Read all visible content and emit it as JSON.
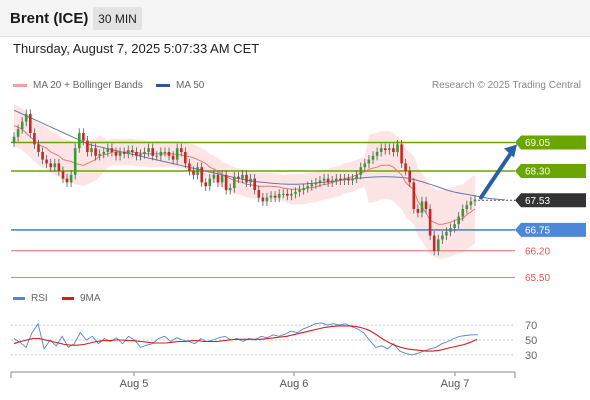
{
  "header": {
    "title": "Brent (ICE)",
    "timeframe": "30 MIN"
  },
  "datetime": "Thursday, August 7, 2025 5:07:33 AM CET",
  "legend": {
    "ma20": "MA 20 + Bollinger Bands",
    "ma50": "MA 50"
  },
  "credit": "Research © 2025 Trading Central",
  "rsi_legend": {
    "rsi": "RSI",
    "ma": "9MA"
  },
  "colors": {
    "green": "#6aa500",
    "blue": "#4d88d8",
    "red": "#e05555",
    "dark": "#333333",
    "arrow": "#2a5ea6",
    "bollinger": "#fde0e0",
    "ma20": "#e8787a",
    "ma50": "#6878a8"
  },
  "chart_data": [
    {
      "type": "candlestick",
      "x_ticks": [
        "Aug 5",
        "Aug 6",
        "Aug 7"
      ],
      "price_levels": [
        {
          "value": 69.05,
          "label": "69.05",
          "kind": "resistance",
          "color": "#6aa500"
        },
        {
          "value": 68.3,
          "label": "68.30",
          "kind": "resistance",
          "color": "#6aa500"
        },
        {
          "value": 67.53,
          "label": "67.53",
          "kind": "last",
          "color": "#333333"
        },
        {
          "value": 66.75,
          "label": "66.75",
          "kind": "pivot",
          "color": "#4d88d8"
        },
        {
          "value": 66.2,
          "label": "66.20",
          "kind": "support",
          "color": "#e05555"
        },
        {
          "value": 65.5,
          "label": "65.50",
          "kind": "support",
          "color": "#e05555"
        }
      ],
      "ylim": [
        65.3,
        70.3
      ],
      "close": [
        69.2,
        69.4,
        69.6,
        69.8,
        69.3,
        69.0,
        68.8,
        68.6,
        68.5,
        68.4,
        68.5,
        68.3,
        68.1,
        68.0,
        68.2,
        68.9,
        69.3,
        69.1,
        68.8,
        68.9,
        68.7,
        68.75,
        68.8,
        68.9,
        68.8,
        68.7,
        68.8,
        68.75,
        68.85,
        68.8,
        68.7,
        68.75,
        68.8,
        68.9,
        68.7,
        68.7,
        68.8,
        68.8,
        68.7,
        68.6,
        68.9,
        68.8,
        68.5,
        68.3,
        68.2,
        68.4,
        68.0,
        67.9,
        68.1,
        68.2,
        68.0,
        68.2,
        67.8,
        67.85,
        68.15,
        68.1,
        68.2,
        68.0,
        68.1,
        67.8,
        67.6,
        67.5,
        67.6,
        67.65,
        67.6,
        67.7,
        67.7,
        67.65,
        67.7,
        67.75,
        67.8,
        67.85,
        67.9,
        67.95,
        68.0,
        68.05,
        68.1,
        68.0,
        68.05,
        68.1,
        68.05,
        68.1,
        68.05,
        68.1,
        68.2,
        68.4,
        68.5,
        68.6,
        68.7,
        68.8,
        68.9,
        68.85,
        68.9,
        68.8,
        69.0,
        68.5,
        68.3,
        68.0,
        67.3,
        67.2,
        67.5,
        67.3,
        66.6,
        66.2,
        66.5,
        66.6,
        66.7,
        66.8,
        66.9,
        67.1,
        67.3,
        67.4,
        67.5,
        67.55
      ],
      "ma20": [
        69.5,
        69.4,
        69.3,
        69.1,
        69.0,
        68.9,
        68.8,
        68.7,
        68.6,
        68.55,
        68.5,
        68.45,
        68.5,
        68.6,
        68.7,
        68.75,
        68.8,
        68.8,
        68.8,
        68.8,
        68.78,
        68.76,
        68.75,
        68.75,
        68.75,
        68.75,
        68.75,
        68.72,
        68.7,
        68.65,
        68.6,
        68.5,
        68.4,
        68.3,
        68.2,
        68.1,
        68.05,
        68.0,
        67.95,
        67.92,
        67.9,
        67.9,
        67.9,
        67.88,
        67.85,
        67.82,
        67.82,
        67.82,
        67.85,
        67.88,
        67.92,
        67.96,
        68.0,
        68.05,
        68.1,
        68.15,
        68.2,
        68.28,
        68.35,
        68.4,
        68.45,
        68.45,
        68.4,
        68.2,
        68.0,
        67.8,
        67.5,
        67.2,
        67.0,
        66.9,
        66.9,
        66.95,
        67.0,
        67.05,
        67.15,
        67.3
      ],
      "ma50": [
        69.9,
        69.8,
        69.7,
        69.6,
        69.5,
        69.4,
        69.3,
        69.2,
        69.1,
        69.0,
        68.95,
        68.9,
        68.85,
        68.8,
        68.75,
        68.7,
        68.65,
        68.6,
        68.55,
        68.5,
        68.45,
        68.4,
        68.35,
        68.3,
        68.25,
        68.2,
        68.15,
        68.1,
        68.06,
        68.02,
        68.0,
        67.98,
        67.96,
        67.95,
        67.95,
        67.96,
        67.98,
        68.0,
        68.02,
        68.05,
        68.08,
        68.1,
        68.12,
        68.14,
        68.15,
        68.15,
        68.14,
        68.12,
        68.08,
        68.02,
        67.95,
        67.88,
        67.8,
        67.74,
        67.7,
        67.66,
        67.62,
        67.58,
        67.56,
        67.54
      ]
    },
    {
      "type": "line",
      "title": "RSI",
      "y_ticks": [
        "70",
        "50",
        "30"
      ],
      "ylim": [
        15,
        85
      ],
      "series": [
        {
          "name": "RSI",
          "color": "#4d88d8",
          "values": [
            52,
            47,
            40,
            60,
            72,
            38,
            50,
            42,
            55,
            40,
            45,
            60,
            50,
            55,
            45,
            52,
            48,
            53,
            45,
            55,
            50,
            40,
            43,
            45,
            52,
            55,
            48,
            53,
            50,
            48,
            45,
            52,
            48,
            50,
            53,
            55,
            50,
            52,
            48,
            52,
            50,
            55,
            53,
            57,
            55,
            58,
            62,
            60,
            65,
            68,
            72,
            73,
            70,
            72,
            70,
            72,
            68,
            65,
            60,
            50,
            40,
            42,
            38,
            45,
            35,
            32,
            30,
            32,
            35,
            38,
            40,
            45,
            48,
            52,
            55,
            56,
            57,
            57
          ]
        },
        {
          "name": "9MA",
          "color": "#d81c1c",
          "values": [
            45,
            48,
            50,
            52,
            52,
            50,
            48,
            46,
            44,
            43,
            43,
            44,
            46,
            48,
            49,
            49,
            50,
            50,
            49,
            49,
            48,
            47,
            46,
            46,
            46,
            47,
            48,
            48,
            49,
            49,
            48,
            48,
            48,
            49,
            50,
            51,
            51,
            51,
            51,
            51,
            52,
            53,
            54,
            55,
            57,
            59,
            61,
            63,
            65,
            67,
            68,
            69,
            69,
            69,
            68,
            66,
            63,
            58,
            52,
            47,
            43,
            40,
            38,
            37,
            36,
            35,
            35,
            36,
            38,
            40,
            42,
            44,
            47,
            51
          ]
        }
      ]
    }
  ]
}
